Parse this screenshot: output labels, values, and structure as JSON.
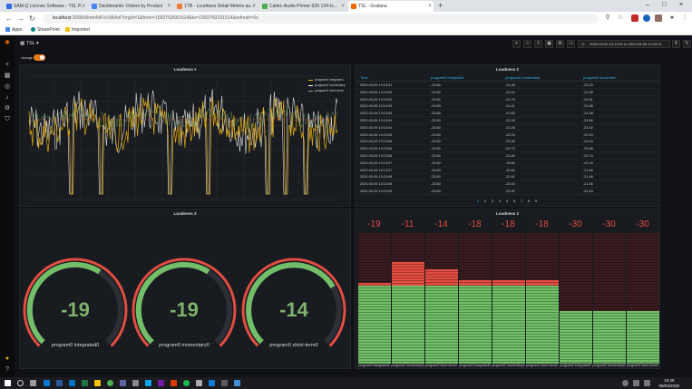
{
  "browser": {
    "tabs": [
      {
        "title": "SAM-Q License Software - TSL P...",
        "color": "#2b6ce6"
      },
      {
        "title": "Dashboards: Orders by Product",
        "color": "#4286f4"
      },
      {
        "title": "1TB - Loudness Detail Meters au...",
        "color": "#f27b3b"
      },
      {
        "title": "Caltec-Audio-Primer-926-134-Is...",
        "color": "#4caf50"
      },
      {
        "title": "TSL - Grafana",
        "color": "#f46800"
      }
    ],
    "url_host": "localhost",
    "url_rest": ":3000/d/mmNKVcWk/tsl?orgId=1&from=1583759581514&to=1583760181514&refresh=5s",
    "bookmarks": [
      "Apps",
      "SharePoint",
      "Imported"
    ]
  },
  "grafana": {
    "dashboard_title": "TSL",
    "time_range": "2020-03-09 13:13:01 to 2020-03-09 13:23:01",
    "variable_label": "change"
  },
  "panels": {
    "loudness_graph": {
      "title": "Loudness",
      "legend": [
        "program0 integrated",
        "program0 momentary",
        "program0 short-term"
      ],
      "colors": [
        "#e5ac0e",
        "#ffffff",
        "#7eb26d"
      ]
    },
    "loudness_table": {
      "title": "Loudness 2",
      "columns": [
        "Time",
        "program0 integrated",
        "program0 momentary",
        "program0 short-term"
      ],
      "rows": [
        [
          "2020-03-09 13:13:01",
          "-23.60",
          "-21.48",
          "-22.19"
        ],
        [
          "2020-03-09 13:13:02",
          "-23.60",
          "-21.42",
          "-21.98"
        ],
        [
          "2020-03-09 13:13:02",
          "-23.60",
          "-21.70",
          "-21.91"
        ],
        [
          "2020-03-09 13:13:03",
          "-23.60",
          "-21.41",
          "-21.68"
        ],
        [
          "2020-03-09 13:13:03",
          "-23.60",
          "-21.83",
          "-21.38"
        ],
        [
          "2020-03-09 13:13:04",
          "-23.60",
          "-22.26",
          "-21.66"
        ],
        [
          "2020-03-09 13:13:04",
          "-23.60",
          "-22.26",
          "-21.92"
        ],
        [
          "2020-03-09 13:13:05",
          "-23.60",
          "-22.03",
          "-22.29"
        ],
        [
          "2020-03-09 13:13:05",
          "-23.60",
          "-22.26",
          "-22.44"
        ],
        [
          "2020-03-09 13:13:06",
          "-23.60",
          "-22.72",
          "-22.68"
        ],
        [
          "2020-03-09 13:13:06",
          "-23.60",
          "-21.89",
          "-22.74"
        ],
        [
          "2020-03-09 13:13:07",
          "-23.60",
          "-19.64",
          "-22.16"
        ],
        [
          "2020-03-09 13:13:07",
          "-23.60",
          "-20.64",
          "-21.66"
        ],
        [
          "2020-03-09 13:13:08",
          "-23.60",
          "-20.41",
          "-21.46"
        ],
        [
          "2020-03-09 13:13:08",
          "-23.60",
          "-22.00",
          "-21.46"
        ],
        [
          "2020-03-09 13:13:09",
          "-23.60",
          "-22.32",
          "-21.43"
        ]
      ],
      "pages": [
        "1",
        "2",
        "3",
        "4",
        "5",
        "6",
        "7",
        "8",
        "9"
      ]
    },
    "gauges": {
      "title": "Loudness 3",
      "items": [
        {
          "value": "-19",
          "label": "program0 integrated0",
          "fraction": 0.62
        },
        {
          "value": "-19",
          "label": "program0 momentary0",
          "fraction": 0.62
        },
        {
          "value": "-14",
          "label": "program0 short-term0",
          "fraction": 0.72
        }
      ],
      "value_color": "#7eb26d",
      "arc_color": "#e24d42",
      "fill_color": "#73bf69"
    },
    "bar_gauge": {
      "title": "Loudness 2",
      "items": [
        {
          "value": "-19",
          "label": "program0 integrated0",
          "level": 0.62
        },
        {
          "value": "-11",
          "label": "program0 momentary0",
          "level": 0.78
        },
        {
          "value": "-14",
          "label": "program0 short-term0",
          "level": 0.72
        },
        {
          "value": "-18",
          "label": "program0 integrated0",
          "level": 0.64
        },
        {
          "value": "-18",
          "label": "program0 momentary0",
          "level": 0.64
        },
        {
          "value": "-18",
          "label": "program0 short-term0",
          "level": 0.64
        },
        {
          "value": "-30",
          "label": "program0 integrated0",
          "level": 0.4
        },
        {
          "value": "-30",
          "label": "program0 momentary0",
          "level": 0.4
        },
        {
          "value": "-30",
          "label": "program0 short-term0",
          "level": 0.4
        }
      ],
      "threshold": 0.6
    }
  },
  "taskbar": {
    "time": "13:40",
    "date": "09/03/2020"
  }
}
